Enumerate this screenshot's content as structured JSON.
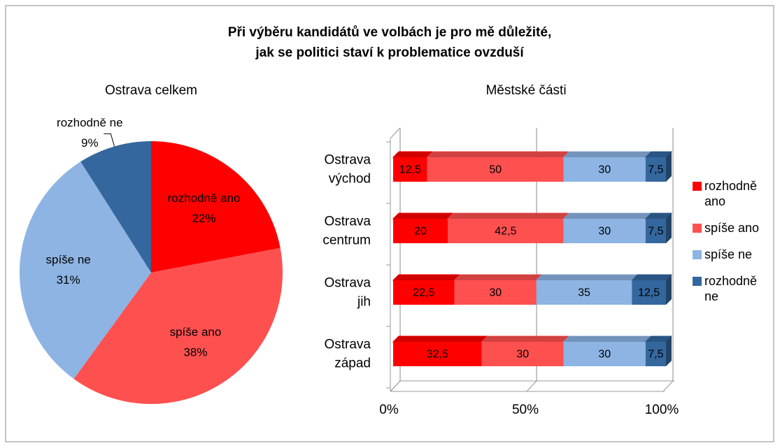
{
  "title": [
    "Při výběru kandidátů ve volbách je pro mě důležité,",
    "jak se politici staví k problematice ovzduší"
  ],
  "chart_data": [
    {
      "type": "pie",
      "title": "Ostrava celkem",
      "categories": [
        "rozhodně ano",
        "spíše ano",
        "spíše ne",
        "rozhodně ne"
      ],
      "values": [
        22,
        38,
        31,
        9
      ],
      "value_labels": [
        "22%",
        "38%",
        "31%",
        "9%"
      ],
      "colors": [
        "#ff0000",
        "#ff5050",
        "#8db4e3",
        "#34679e"
      ]
    },
    {
      "type": "stacked_barh",
      "title": "Městské části",
      "categories": [
        "Ostrava východ",
        "Ostrava centrum",
        "Ostrava jih",
        "Ostrava západ"
      ],
      "series": [
        {
          "name": "rozhodně ano",
          "color": "#ff0000",
          "values": [
            12.5,
            20,
            22.5,
            32.5
          ],
          "value_labels": [
            "12,5",
            "20",
            "22,5",
            "32,5"
          ]
        },
        {
          "name": "spíše ano",
          "color": "#ff5050",
          "values": [
            50,
            42.5,
            30,
            30
          ],
          "value_labels": [
            "50",
            "42,5",
            "30",
            "30"
          ]
        },
        {
          "name": "spíše ne",
          "color": "#8db4e3",
          "values": [
            30,
            30,
            35,
            30
          ],
          "value_labels": [
            "30",
            "30",
            "35",
            "30"
          ]
        },
        {
          "name": "rozhodně ne",
          "color": "#34679e",
          "values": [
            7.5,
            7.5,
            12.5,
            7.5
          ],
          "value_labels": [
            "7,5",
            "7,5",
            "12,5",
            "7,5"
          ]
        }
      ],
      "xlim": [
        0,
        100
      ],
      "xticks": [
        {
          "value": 0,
          "label": "0%"
        },
        {
          "value": 50,
          "label": "50%"
        },
        {
          "value": 100,
          "label": "100%"
        }
      ],
      "grid": true,
      "legend": "right"
    }
  ]
}
